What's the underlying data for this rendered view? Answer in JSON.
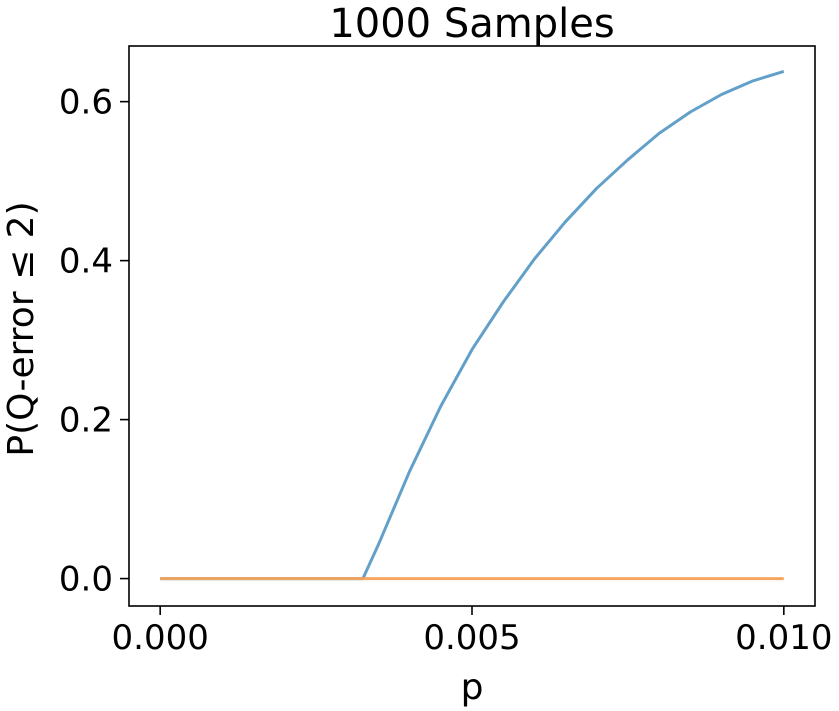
{
  "chart_data": {
    "type": "line",
    "title": "1000 Samples",
    "xlabel": "p",
    "ylabel": "P(Q-error  ≤  2)",
    "xlim": [
      -0.0005,
      0.0105
    ],
    "ylim": [
      -0.0345,
      0.67
    ],
    "x_ticks": [
      {
        "value": 0.0,
        "label": "0.000"
      },
      {
        "value": 0.005,
        "label": "0.005"
      },
      {
        "value": 0.01,
        "label": "0.010"
      }
    ],
    "y_ticks": [
      {
        "value": 0.0,
        "label": "0.0"
      },
      {
        "value": 0.2,
        "label": "0.2"
      },
      {
        "value": 0.4,
        "label": "0.4"
      },
      {
        "value": 0.6,
        "label": "0.6"
      }
    ],
    "grid": false,
    "legend": null,
    "series": [
      {
        "color": "#5b9bc6",
        "x": [
          0.0,
          0.001,
          0.002,
          0.003,
          0.00325,
          0.0035,
          0.004,
          0.0045,
          0.005,
          0.0055,
          0.006,
          0.0065,
          0.007,
          0.0075,
          0.008,
          0.0085,
          0.009,
          0.0095,
          0.01
        ],
        "y": [
          0.0,
          0.0,
          0.0,
          0.0,
          0.0,
          0.043,
          0.135,
          0.217,
          0.288,
          0.348,
          0.402,
          0.449,
          0.491,
          0.527,
          0.56,
          0.587,
          0.609,
          0.626,
          0.638
        ]
      },
      {
        "color": "#f4a25a",
        "x": [
          0.0,
          0.01
        ],
        "y": [
          0.0,
          0.0
        ]
      }
    ]
  }
}
